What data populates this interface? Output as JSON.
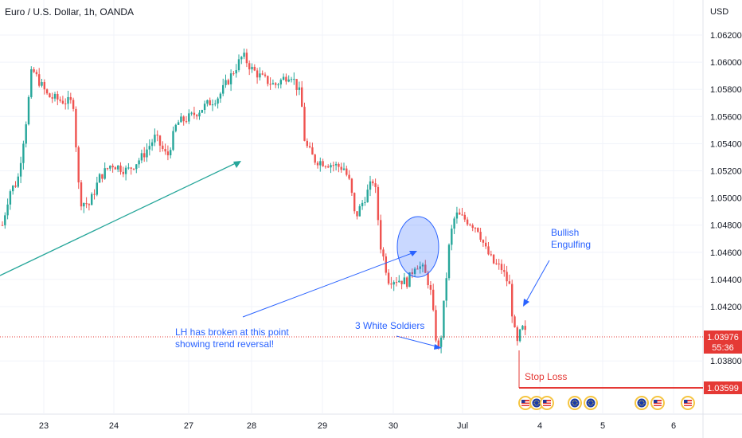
{
  "header": {
    "title": "Euro / U.S. Dollar, 1h, OANDA",
    "currency": "USD"
  },
  "chart_data": {
    "type": "candlestick",
    "y_ticks": [
      "1.06200",
      "1.06000",
      "1.05800",
      "1.05600",
      "1.05400",
      "1.05200",
      "1.05000",
      "1.04800",
      "1.04600",
      "1.04400",
      "1.04200",
      "1.03800"
    ],
    "ylim": [
      1.0345,
      1.0625
    ],
    "x_ticks": [
      "23",
      "24",
      "27",
      "28",
      "29",
      "30",
      "Jul",
      "4",
      "5",
      "6"
    ],
    "current_price": {
      "value": 1.03976,
      "label": "1.03976",
      "countdown": "55:36"
    },
    "stop_loss": {
      "value": 1.03599,
      "label": "1.03599",
      "text": "Stop Loss"
    },
    "annotations": {
      "bullish_engulfing": [
        "Bullish",
        "Engulfing"
      ],
      "three_white_soldiers": "3 White Soldiers",
      "lh_broken": [
        "LH has broken at this point",
        "showing trend reversal!"
      ]
    },
    "colors": {
      "up": "#26a69a",
      "down": "#ef5350",
      "annotation": "#2962ff",
      "trend_line": "#26a69a",
      "stop_loss": "#e53935"
    }
  },
  "events": [
    {
      "name": "us-flag-icon"
    },
    {
      "name": "eu-flag-icon"
    },
    {
      "name": "us-flag-icon"
    },
    {
      "name": "eu-flag-icon"
    },
    {
      "name": "eu-flag-icon"
    },
    {
      "name": "eu-flag-icon"
    },
    {
      "name": "us-flag-icon"
    },
    {
      "name": "us-flag-icon"
    }
  ]
}
